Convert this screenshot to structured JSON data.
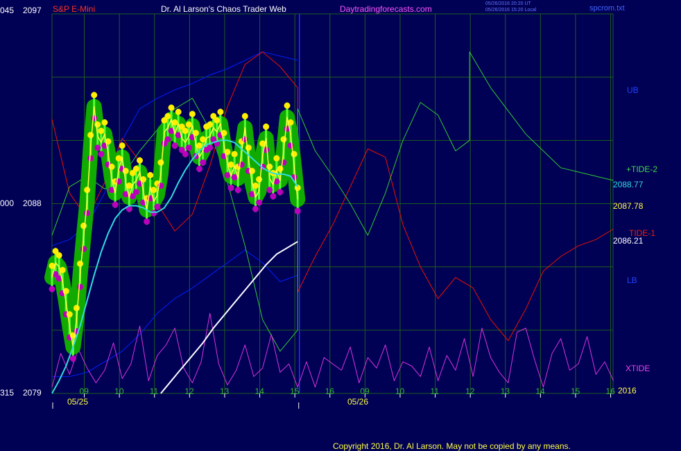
{
  "header": {
    "left_ticks_top": "045",
    "price_top": "2097",
    "symbol": "S&P E-Mini",
    "title": "Dr. Al Larson's Chaos Trader Web",
    "website": "Daytradingforecasts.com",
    "timestamp_ut": "05/26/2016 20:20 UT",
    "timestamp_local": "05/26/2016 15:20 Local",
    "file": "spcrom.txt"
  },
  "left_axis": {
    "mid_tick": "000",
    "mid_price": "2088",
    "bottom_tick": "315",
    "bottom_price": "2079"
  },
  "right_labels": {
    "ub": "UB",
    "tide2": "+TIDE-2",
    "value1": "2088.77",
    "value2": "2087.78",
    "tide1": "TIDE-1",
    "value3": "2086.21",
    "lb": "LB",
    "xtide": "XTIDE",
    "year": "2016"
  },
  "x_axis": {
    "hours": [
      "09",
      "10",
      "11",
      "12",
      "13",
      "14",
      "15",
      "16",
      "09",
      "10",
      "11",
      "12",
      "13",
      "14",
      "15",
      "16"
    ],
    "date1": "05/25",
    "date2": "05/26"
  },
  "copyright": "Copyright 2016, Dr. Al Larson. May not be copied by any means.",
  "colors": {
    "background": "#000055",
    "grid": "#1e5e1e",
    "price_glow": "#11aa00",
    "price_bars": "#55ff33",
    "highs": "#ffee00",
    "lows": "#bb00bb",
    "ema_fast": "#ffff44",
    "ema_mid": "#33dddd",
    "ema_slow": "#ffffff",
    "tide1": "#ee1100",
    "tide2": "#33cc33",
    "bands": "#0022ff",
    "xtide": "#dd33dd",
    "separator": "#2233ff"
  },
  "chart_data": {
    "type": "line",
    "ylim": [
      2079,
      2097
    ],
    "y_ticks": [
      2079,
      2088,
      2097
    ],
    "sessions": [
      "05/25",
      "05/26"
    ],
    "series": [
      {
        "name": "S&P E-Mini",
        "x": [
          0.0,
          0.1,
          0.2,
          0.3,
          0.4,
          0.5,
          0.6,
          0.7,
          0.8,
          0.9,
          1.0,
          1.1,
          1.2,
          1.3,
          1.4,
          1.5,
          1.6,
          1.7,
          1.8,
          1.9,
          2.0,
          2.1,
          2.2,
          2.3,
          2.4,
          2.5,
          2.6,
          2.7,
          2.8,
          2.9,
          3.0,
          3.1,
          3.2,
          3.3,
          3.4,
          3.5,
          3.6,
          3.7,
          3.8,
          3.9,
          4.0,
          4.1,
          4.2,
          4.3,
          4.4,
          4.5,
          4.6,
          4.7,
          4.8,
          4.9,
          5.0,
          5.1,
          5.2,
          5.3,
          5.4,
          5.5,
          5.6,
          5.7,
          5.8,
          5.9,
          6.0,
          6.1,
          6.2,
          6.3,
          6.4,
          6.5,
          6.6,
          6.7,
          6.8,
          6.9,
          7.0
        ],
        "values": [
          2084.5,
          2085.2,
          2085.0,
          2084.3,
          2083.3,
          2082.2,
          2081.2,
          2082.5,
          2084.6,
          2086.4,
          2088.1,
          2090.7,
          2092.6,
          2091.2,
          2090.9,
          2091.3,
          2090.4,
          2089.2,
          2088.5,
          2089.6,
          2090.2,
          2089.0,
          2088.3,
          2088.9,
          2089.1,
          2089.5,
          2088.6,
          2087.7,
          2088.8,
          2088.1,
          2088.4,
          2089.4,
          2091.4,
          2091.6,
          2092.0,
          2091.3,
          2091.8,
          2091.1,
          2090.9,
          2091.2,
          2091.7,
          2090.8,
          2090.2,
          2090.5,
          2091.1,
          2091.2,
          2091.6,
          2091.4,
          2091.8,
          2090.8,
          2089.9,
          2089.3,
          2089.8,
          2089.2,
          2090.4,
          2091.6,
          2090.1,
          2089.0,
          2088.3,
          2088.6,
          2090.3,
          2091.1,
          2089.2,
          2088.9,
          2089.6,
          2089.1,
          2090.5,
          2092.1,
          2091.3,
          2089.8,
          2088.2
        ]
      },
      {
        "name": "2088.77",
        "x": [
          0.0,
          0.2,
          0.4,
          0.6,
          0.8,
          1.0,
          1.2,
          1.4,
          1.6,
          1.8,
          2.0,
          2.2,
          2.4,
          2.6,
          2.8,
          3.0,
          3.2,
          3.4,
          3.6,
          3.8,
          4.0,
          4.2,
          4.4,
          4.6,
          4.8,
          5.0,
          5.2,
          5.4,
          5.6,
          5.8,
          6.0,
          6.2,
          6.4,
          6.6,
          6.8,
          7.0
        ],
        "values": [
          2079.0,
          2079.6,
          2080.3,
          2081.2,
          2082.2,
          2083.4,
          2084.6,
          2085.7,
          2086.6,
          2087.3,
          2087.7,
          2087.9,
          2087.9,
          2087.8,
          2087.6,
          2087.6,
          2087.8,
          2088.3,
          2089.0,
          2089.6,
          2090.1,
          2090.5,
          2090.8,
          2090.9,
          2091.0,
          2091.0,
          2090.9,
          2090.6,
          2090.3,
          2090.0,
          2089.7,
          2089.5,
          2089.4,
          2089.4,
          2089.3,
          2088.8
        ]
      },
      {
        "name": "2086.21",
        "x": [
          3.1,
          3.4,
          3.7,
          4.0,
          4.3,
          4.6,
          4.9,
          5.2,
          5.5,
          5.8,
          6.1,
          6.4,
          6.7,
          7.0
        ],
        "values": [
          2079.0,
          2079.6,
          2080.2,
          2080.8,
          2081.4,
          2082.1,
          2082.7,
          2083.3,
          2083.9,
          2084.5,
          2085.1,
          2085.6,
          2085.9,
          2086.2
        ]
      },
      {
        "name": "TIDE-1",
        "x": [
          0.0,
          0.5,
          1.0,
          1.5,
          2.0,
          2.5,
          3.0,
          3.5,
          4.0,
          4.5,
          5.0,
          5.5,
          6.0,
          6.5,
          7.0,
          7.0,
          7.5,
          8.0,
          8.5,
          9.0,
          9.5,
          10.0,
          10.5,
          11.0,
          11.5,
          12.0,
          12.5,
          13.0,
          13.5,
          14.0,
          14.5,
          15.0,
          15.5,
          16.0
        ],
        "values": [
          2092.0,
          2088.5,
          2087.3,
          2089.0,
          2091.1,
          2090.0,
          2088.0,
          2086.7,
          2087.5,
          2089.8,
          2092.6,
          2094.6,
          2095.2,
          2094.5,
          2093.5,
          2083.8,
          2085.5,
          2087.0,
          2088.8,
          2090.6,
          2090.2,
          2087.0,
          2085.0,
          2083.5,
          2084.5,
          2084.0,
          2082.5,
          2081.5,
          2083.0,
          2084.8,
          2085.5,
          2086.0,
          2086.3,
          2086.8
        ]
      },
      {
        "name": "+TIDE-2",
        "x": [
          0.0,
          0.5,
          1.0,
          1.5,
          2.0,
          2.5,
          3.0,
          3.5,
          4.0,
          4.5,
          5.0,
          5.5,
          6.0,
          6.5,
          7.0,
          7.0,
          7.5,
          8.0,
          8.5,
          9.0,
          9.5,
          10.0,
          10.5,
          11.0,
          11.5,
          11.9,
          11.9,
          12.5,
          13.0,
          13.5,
          14.0,
          14.5,
          15.0,
          15.5,
          16.0
        ],
        "values": [
          2086.5,
          2088.8,
          2089.3,
          2088.7,
          2089.3,
          2090.5,
          2091.5,
          2092.5,
          2093.0,
          2091.5,
          2089.0,
          2086.0,
          2082.5,
          2081.0,
          2082.0,
          2092.5,
          2090.5,
          2089.3,
          2088.0,
          2086.5,
          2088.5,
          2091.0,
          2092.8,
          2092.2,
          2090.5,
          2091.0,
          2095.2,
          2093.5,
          2092.4,
          2091.3,
          2090.5,
          2089.7,
          2089.5,
          2089.3,
          2089.1
        ]
      },
      {
        "name": "UB",
        "x": [
          0.0,
          0.5,
          1.0,
          1.5,
          2.0,
          2.5,
          3.0,
          3.5,
          4.0,
          4.5,
          5.0,
          5.5,
          6.0,
          6.5,
          7.0
        ],
        "values": [
          2086.0,
          2086.3,
          2087.0,
          2088.5,
          2091.0,
          2092.5,
          2093.0,
          2093.4,
          2093.7,
          2094.1,
          2094.4,
          2094.8,
          2095.2,
          2095.0,
          2094.8
        ]
      },
      {
        "name": "LB",
        "x": [
          0.0,
          0.5,
          1.0,
          1.5,
          2.0,
          2.5,
          3.0,
          3.5,
          4.0,
          4.5,
          5.0,
          5.5,
          6.0,
          6.5,
          7.0
        ],
        "values": [
          2079.8,
          2079.8,
          2080.0,
          2080.5,
          2081.0,
          2081.8,
          2082.8,
          2083.5,
          2084.0,
          2084.6,
          2085.2,
          2085.8,
          2085.2,
          2084.3,
          2084.6
        ]
      },
      {
        "name": "XTIDE",
        "x": [
          0.0,
          0.25,
          0.5,
          0.75,
          1.0,
          1.25,
          1.5,
          1.75,
          2.0,
          2.25,
          2.5,
          2.75,
          3.0,
          3.25,
          3.5,
          3.75,
          4.0,
          4.25,
          4.5,
          4.75,
          5.0,
          5.25,
          5.5,
          5.75,
          6.0,
          6.25,
          6.5,
          6.75,
          7.0,
          7.25,
          7.5,
          7.75,
          8.0,
          8.25,
          8.5,
          8.75,
          9.0,
          9.25,
          9.5,
          9.75,
          10.0,
          10.25,
          10.5,
          10.75,
          11.0,
          11.25,
          11.5,
          11.75,
          12.0,
          12.25,
          12.5,
          12.75,
          13.0,
          13.25,
          13.5,
          13.75,
          14.0,
          14.25,
          14.5,
          14.75,
          15.0,
          15.25,
          15.5,
          15.75,
          16.0
        ],
        "values": [
          2079.3,
          2080.9,
          2079.9,
          2081.1,
          2080.2,
          2079.5,
          2080.1,
          2081.4,
          2079.7,
          2080.4,
          2082.2,
          2079.6,
          2080.8,
          2081.3,
          2082.1,
          2080.2,
          2079.5,
          2080.5,
          2082.8,
          2080.4,
          2079.4,
          2080.1,
          2081.3,
          2079.8,
          2080.2,
          2081.8,
          2080.0,
          2080.4,
          2079.3,
          2080.5,
          2079.3,
          2080.7,
          2080.4,
          2080.1,
          2081.2,
          2079.5,
          2080.7,
          2080.2,
          2081.3,
          2079.6,
          2080.5,
          2080.3,
          2079.8,
          2081.2,
          2079.6,
          2080.8,
          2080.1,
          2081.6,
          2079.8,
          2082.1,
          2080.7,
          2080.0,
          2079.5,
          2081.9,
          2082.1,
          2080.6,
          2079.3,
          2080.9,
          2081.6,
          2080.1,
          2080.4,
          2081.7,
          2079.9,
          2080.5,
          2079.6
        ]
      }
    ],
    "hours": [
      "09",
      "10",
      "11",
      "12",
      "13",
      "14",
      "15",
      "16",
      "09",
      "10",
      "11",
      "12",
      "13",
      "14",
      "15",
      "16"
    ],
    "title": "S&P E-Mini",
    "xlabel": "",
    "ylabel": "",
    "grid": true,
    "legend": "right"
  }
}
